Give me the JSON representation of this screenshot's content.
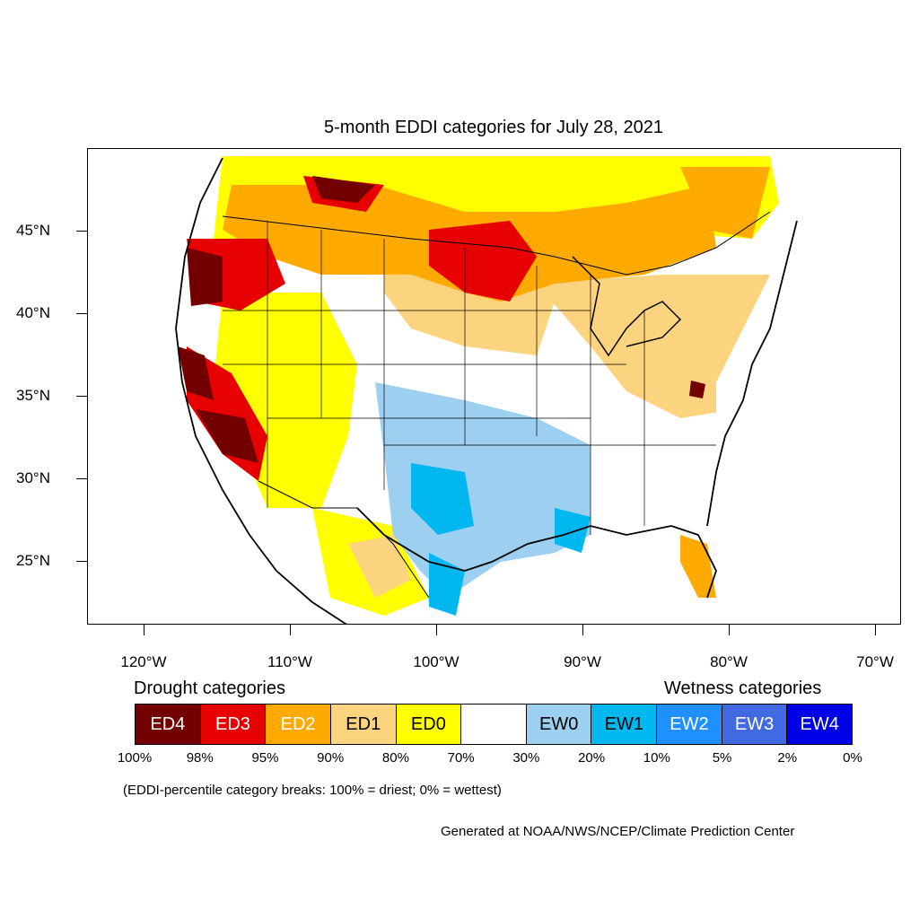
{
  "title": "5-month EDDI categories for July 28, 2021",
  "colors": {
    "ED4": "#730000",
    "ED3": "#e60000",
    "ED2": "#ffaa00",
    "ED1": "#fcd37f",
    "ED0": "#ffff00",
    "neutral": "#ffffff",
    "EW0": "#9ccff0",
    "EW1": "#00b7f0",
    "EW2": "#1e90ff",
    "EW3": "#4169e1",
    "EW4": "#0000e6"
  },
  "lat_labels": [
    "45°N",
    "40°N",
    "35°N",
    "30°N",
    "25°N"
  ],
  "lon_labels": [
    "120°W",
    "110°W",
    "100°W",
    "90°W",
    "80°W",
    "70°W"
  ],
  "legend": {
    "drought_heading": "Drought categories",
    "wetness_heading": "Wetness categories",
    "boxes": [
      {
        "label": "ED4",
        "color": "#730000",
        "text_color": "#ffffff"
      },
      {
        "label": "ED3",
        "color": "#e60000",
        "text_color": "#ffffff"
      },
      {
        "label": "ED2",
        "color": "#ffaa00",
        "text_color": "#ffffff"
      },
      {
        "label": "ED1",
        "color": "#fcd37f",
        "text_color": "#000000"
      },
      {
        "label": "ED0",
        "color": "#ffff00",
        "text_color": "#000000"
      },
      {
        "label": "",
        "color": "#ffffff",
        "text_color": "#000000"
      },
      {
        "label": "EW0",
        "color": "#9ccff0",
        "text_color": "#000000"
      },
      {
        "label": "EW1",
        "color": "#00b7f0",
        "text_color": "#000000"
      },
      {
        "label": "EW2",
        "color": "#1e90ff",
        "text_color": "#ffffff"
      },
      {
        "label": "EW3",
        "color": "#4169e1",
        "text_color": "#ffffff"
      },
      {
        "label": "EW4",
        "color": "#0000e6",
        "text_color": "#ffffff"
      }
    ],
    "breaks": [
      "100%",
      "98%",
      "95%",
      "90%",
      "80%",
      "70%",
      "30%",
      "20%",
      "10%",
      "5%",
      "2%",
      "0%"
    ]
  },
  "note": "(EDDI-percentile category breaks: 100% = driest; 0% = wettest)",
  "credit": "Generated at NOAA/NWS/NCEP/Climate Prediction Center"
}
